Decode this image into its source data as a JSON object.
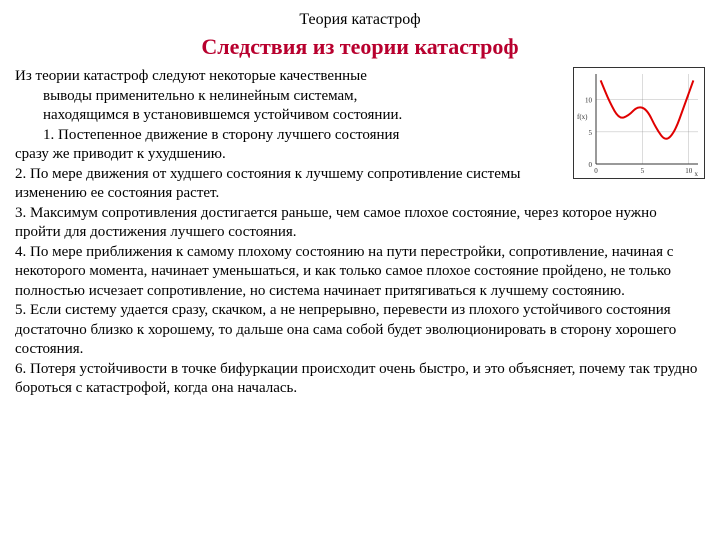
{
  "header": "Теория катастроф",
  "title": "Следствия из теории катастроф",
  "title_color": "#b8002e",
  "intro_line": "Из теории катастроф следуют некоторые качественные",
  "intro_indent1": "выводы применительно к нелинейным системам,",
  "intro_indent2": "находящимся в установившемся устойчивом состоянии.",
  "item1_indent": "1.   Постепенное движение в сторону лучшего состояния",
  "item1_cont": "сразу же приводит к ухудшению.",
  "item2": "2. По мере движения от худшего состояния к лучшему сопротивление системы изменению ее состояния растет.",
  "item3": "3. Максимум сопротивления достигается раньше, чем самое плохое состояние, через которое нужно пройти для достижения лучшего состояния.",
  "item4": "4. По мере приближения к самому плохому состоянию на пути перестройки, сопротивление, начиная с некоторого момента, начинает уменьшаться, и как только самое плохое состояние пройдено, не только полностью исчезает сопротивление, но система начинает притягиваться к лучшему состоянию.",
  "item5": "5. Если систему удается сразу, скачком, а не непрерывно, перевести из плохого устойчивого состояния достаточно близко к хорошему, то дальше она сама собой будет эволюционировать в сторону хорошего состояния.",
  "item6": "6. Потеря устойчивости в точке бифуркации происходит очень быстро, и это объясняет, почему так трудно бороться с катастрофой, когда она началась.",
  "chart": {
    "type": "line",
    "curve_color": "#e00000",
    "axis_color": "#333333",
    "grid_color": "#888888",
    "background": "#ffffff",
    "xlim": [
      0,
      11
    ],
    "ylim": [
      0,
      14
    ],
    "xticks": [
      0,
      5,
      10
    ],
    "yticks": [
      0,
      5,
      10
    ],
    "xlabel": "x",
    "ylabel_left": "f(x)",
    "line_width": 2,
    "points": [
      {
        "x": 0.5,
        "y": 13
      },
      {
        "x": 1.5,
        "y": 9.5
      },
      {
        "x": 2.5,
        "y": 7
      },
      {
        "x": 3.5,
        "y": 7.5
      },
      {
        "x": 4.5,
        "y": 9
      },
      {
        "x": 5.5,
        "y": 8.5
      },
      {
        "x": 6.5,
        "y": 5.5
      },
      {
        "x": 7.5,
        "y": 3.5
      },
      {
        "x": 8.5,
        "y": 5
      },
      {
        "x": 9.5,
        "y": 9
      },
      {
        "x": 10.5,
        "y": 13
      }
    ]
  }
}
